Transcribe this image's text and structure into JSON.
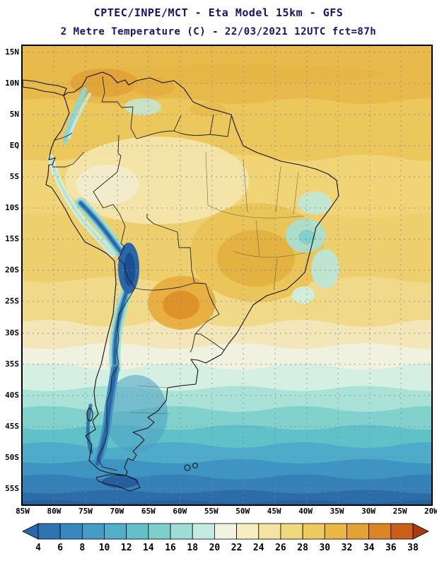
{
  "title": {
    "line1": "CPTEC/INPE/MCT -  Eta Model 15km - GFS",
    "line2": "2 Metre Temperature (C) - 22/03/2021 12UTC fct=87h"
  },
  "map": {
    "lat_labels": [
      "15N",
      "10N",
      "5N",
      "EQ",
      "5S",
      "10S",
      "15S",
      "20S",
      "25S",
      "30S",
      "35S",
      "40S",
      "45S",
      "50S",
      "55S"
    ],
    "lon_labels": [
      "85W",
      "80W",
      "75W",
      "70W",
      "65W",
      "60W",
      "55W",
      "50W",
      "45W",
      "40W",
      "35W",
      "30W",
      "25W",
      "20W"
    ]
  },
  "colorbar": {
    "tick_labels": [
      "4",
      "6",
      "8",
      "10",
      "12",
      "14",
      "16",
      "18",
      "20",
      "22",
      "24",
      "26",
      "28",
      "30",
      "32",
      "34",
      "36",
      "38"
    ],
    "segment_colors": [
      "#2b66a8",
      "#2e74b2",
      "#3888be",
      "#459cc6",
      "#52aec9",
      "#63bfca",
      "#7ecfcc",
      "#9eddd6",
      "#c4ebe2",
      "#f0f2e2",
      "#f6eec2",
      "#f3e4a2",
      "#f0d87f",
      "#edc95f",
      "#e9b748",
      "#e4a134",
      "#da8526",
      "#c8601b",
      "#a93a10"
    ]
  }
}
